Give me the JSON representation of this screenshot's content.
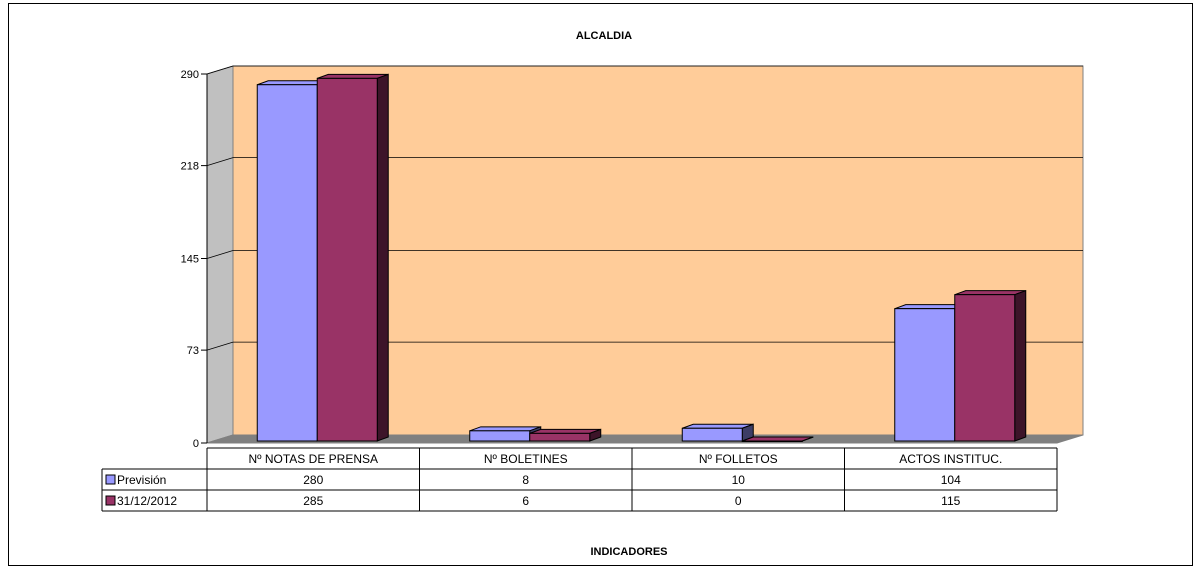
{
  "chart_data": {
    "type": "bar",
    "title": "ALCALDIA",
    "xlabel": "INDICADORES",
    "ylabel": "",
    "ylim": [
      0,
      290
    ],
    "yticks": [
      0,
      73,
      145,
      218,
      290
    ],
    "categories": [
      "Nº NOTAS DE PRENSA",
      "Nº BOLETINES",
      "Nº FOLLETOS",
      "ACTOS INSTITUC."
    ],
    "series": [
      {
        "name": "Previsión",
        "values": [
          280,
          8,
          10,
          104
        ],
        "color": "#9999ff"
      },
      {
        "name": "31/12/2012",
        "values": [
          285,
          6,
          0,
          115
        ],
        "color": "#993366"
      }
    ],
    "grid": true,
    "legend": "data-table-left",
    "data_table": true,
    "plot_background": "#ffcc99"
  }
}
